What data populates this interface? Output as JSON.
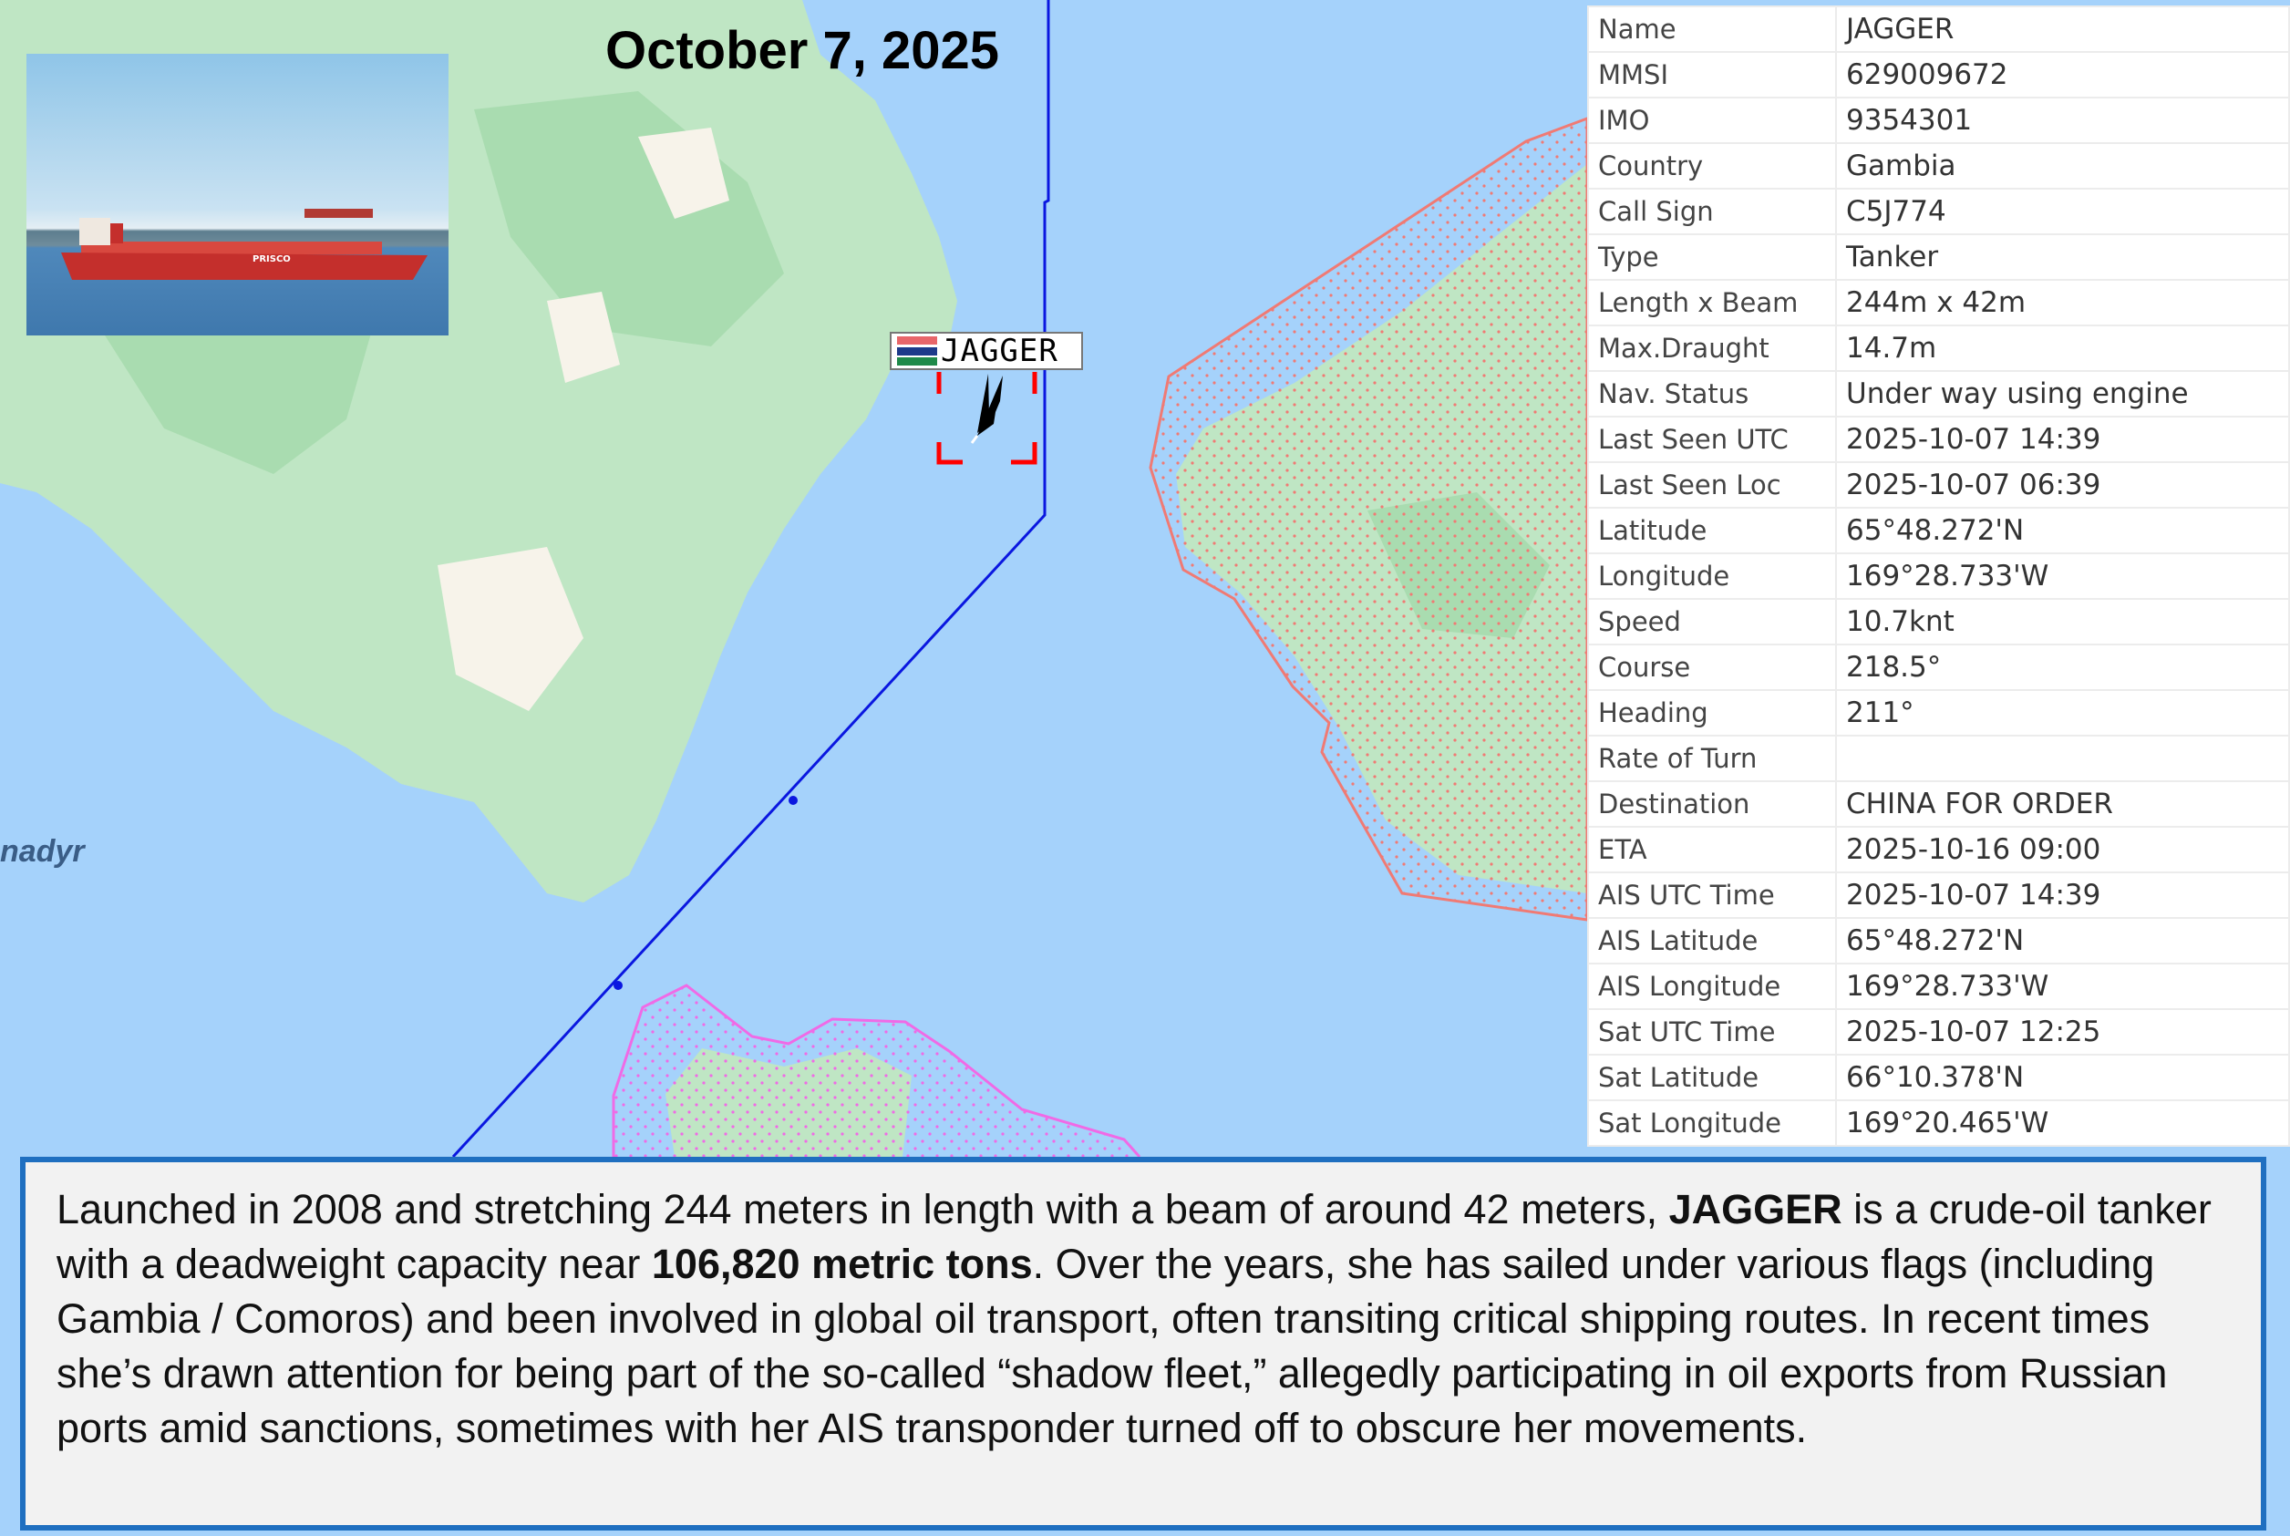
{
  "date_title": "October 7, 2025",
  "map": {
    "place_label": "nadyr",
    "vessel_label": "JAGGER",
    "flag_colors": [
      "#e8666a",
      "#1d3a8a",
      "#1f8a4a"
    ],
    "track_color": "#0a17e0",
    "zone_color_east": "#f07a74",
    "zone_color_south": "#f06ae6",
    "land_color": "#bfe6c4",
    "water_color": "#a5d2fb",
    "selection_color": "#ff0000"
  },
  "photo": {
    "hull_text": "PRISCO"
  },
  "vessel_info": [
    {
      "label": "Name",
      "value": "JAGGER"
    },
    {
      "label": "MMSI",
      "value": "629009672"
    },
    {
      "label": "IMO",
      "value": "9354301"
    },
    {
      "label": "Country",
      "value": "Gambia"
    },
    {
      "label": "Call Sign",
      "value": "C5J774"
    },
    {
      "label": "Type",
      "value": "Tanker"
    },
    {
      "label": "Length x Beam",
      "value": "244m x 42m"
    },
    {
      "label": "Max.Draught",
      "value": "14.7m"
    },
    {
      "label": "Nav. Status",
      "value": "Under way using engine"
    },
    {
      "label": "Last Seen UTC",
      "value": "2025-10-07 14:39"
    },
    {
      "label": "Last Seen Loc",
      "value": "2025-10-07 06:39"
    },
    {
      "label": "Latitude",
      "value": "65°48.272'N"
    },
    {
      "label": "Longitude",
      "value": "169°28.733'W"
    },
    {
      "label": "Speed",
      "value": "10.7knt"
    },
    {
      "label": "Course",
      "value": "218.5°"
    },
    {
      "label": "Heading",
      "value": "211°"
    },
    {
      "label": "Rate of Turn",
      "value": ""
    },
    {
      "label": "Destination",
      "value": "CHINA FOR ORDER"
    },
    {
      "label": "ETA",
      "value": "2025-10-16 09:00"
    },
    {
      "label": "AIS UTC Time",
      "value": "2025-10-07 14:39"
    },
    {
      "label": "AIS Latitude",
      "value": "65°48.272'N"
    },
    {
      "label": "AIS Longitude",
      "value": "169°28.733'W"
    },
    {
      "label": "Sat UTC Time",
      "value": "2025-10-07 12:25"
    },
    {
      "label": "Sat Latitude",
      "value": "66°10.378'N"
    },
    {
      "label": "Sat Longitude",
      "value": "169°20.465'W"
    }
  ],
  "description": {
    "p1": "Launched in 2008 and stretching 244 meters in length with a beam of around 42 meters, ",
    "b1": "JAGGER",
    "p2": " is a crude-oil tanker with a deadweight capacity near ",
    "b2": "106,820 metric tons",
    "p3": ". Over the years, she has sailed under various flags (including Gambia / Comoros) and been involved in global oil transport, often transiting critical shipping routes. In recent times she’s drawn attention for being part of the so-called “shadow fleet,” allegedly participating in oil exports from Russian ports amid sanctions, sometimes with her AIS transponder turned off to obscure her movements."
  }
}
